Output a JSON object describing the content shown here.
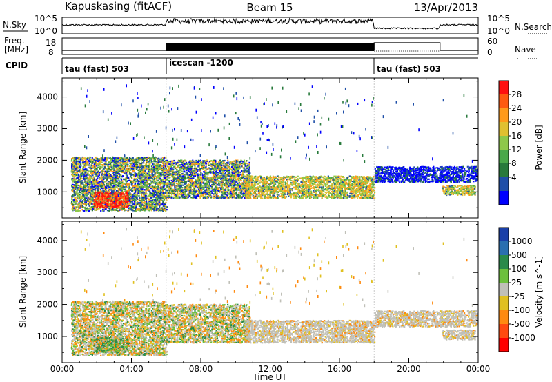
{
  "header": {
    "station": "Kapuskasing (fitACF)",
    "beam": "Beam 15",
    "date": "13/Apr/2013"
  },
  "panels": {
    "nsky_label": "N.Sky",
    "nsearch_label": "N.Search",
    "freq_label_1": "Freq.",
    "freq_label_2": "[MHz]",
    "nave_label": "Nave",
    "cpid_label": "CPID",
    "nsky_ticks": [
      "10^5",
      "10^0"
    ],
    "nsearch_ticks": [
      "10^5",
      "10^0"
    ],
    "freq_ticks": [
      "18",
      "8"
    ],
    "nave_ticks": [
      "60",
      "0"
    ]
  },
  "cpid": {
    "modes": [
      {
        "label": "tau (fast) 503",
        "start_hour": 0,
        "end_hour": 6
      },
      {
        "label": "icescan -1200",
        "start_hour": 6,
        "end_hour": 18
      },
      {
        "label": "tau (fast) 503",
        "start_hour": 18,
        "end_hour": 24
      }
    ]
  },
  "chart_data": [
    {
      "type": "heatmap",
      "quantity": "Power",
      "ylabel": "Slant Range [km]",
      "xlim_hours": [
        0,
        24
      ],
      "ylim_km": [
        180,
        4600
      ],
      "ytick_labels": [
        "1000",
        "2000",
        "3000",
        "4000"
      ],
      "colorbar": {
        "label": "Power [dB]",
        "tick_labels": [
          "28",
          "24",
          "20",
          "16",
          "12",
          "8",
          "4"
        ],
        "colors": [
          "#0000ff",
          "#1f4fa8",
          "#287a3c",
          "#4aa84a",
          "#8ec84a",
          "#e0c030",
          "#ff9a1a",
          "#ff5a10",
          "#ff1010"
        ]
      },
      "echo_regions": [
        {
          "t0": 0.5,
          "t1": 6.0,
          "r0": 400,
          "r1": 2100,
          "level": "mixed"
        },
        {
          "t0": 1.8,
          "t1": 3.8,
          "r0": 500,
          "r1": 1000,
          "level": "high"
        },
        {
          "t0": 6.0,
          "t1": 10.8,
          "r0": 800,
          "r1": 2000,
          "level": "mixed"
        },
        {
          "t0": 10.5,
          "t1": 18.0,
          "r0": 800,
          "r1": 1500,
          "level": "mid"
        },
        {
          "t0": 18.0,
          "t1": 24.0,
          "r0": 1300,
          "r1": 1800,
          "level": "low"
        },
        {
          "t0": 21.9,
          "t1": 23.8,
          "r0": 900,
          "r1": 1200,
          "level": "mid"
        }
      ]
    },
    {
      "type": "heatmap",
      "quantity": "Velocity",
      "ylabel": "Slant Range [km]",
      "xlabel": "Time UT",
      "xlim_hours": [
        0,
        24
      ],
      "ylim_km": [
        180,
        4600
      ],
      "xtick_labels": [
        "00:00",
        "04:00",
        "08:00",
        "12:00",
        "16:00",
        "20:00",
        "00:00"
      ],
      "ytick_labels": [
        "1000",
        "2000",
        "3000",
        "4000"
      ],
      "colorbar": {
        "label": "Velocity [m s^-1]",
        "tick_labels": [
          "1000",
          "500",
          "100",
          "25",
          "-25",
          "-100",
          "-500",
          "-1000"
        ],
        "colors": [
          "#1a3fa8",
          "#2a6fb0",
          "#2a8a4a",
          "#6cc03c",
          "#c0c0b8",
          "#e0c020",
          "#ff8a10",
          "#ff4a10",
          "#ff0000"
        ]
      }
    }
  ]
}
